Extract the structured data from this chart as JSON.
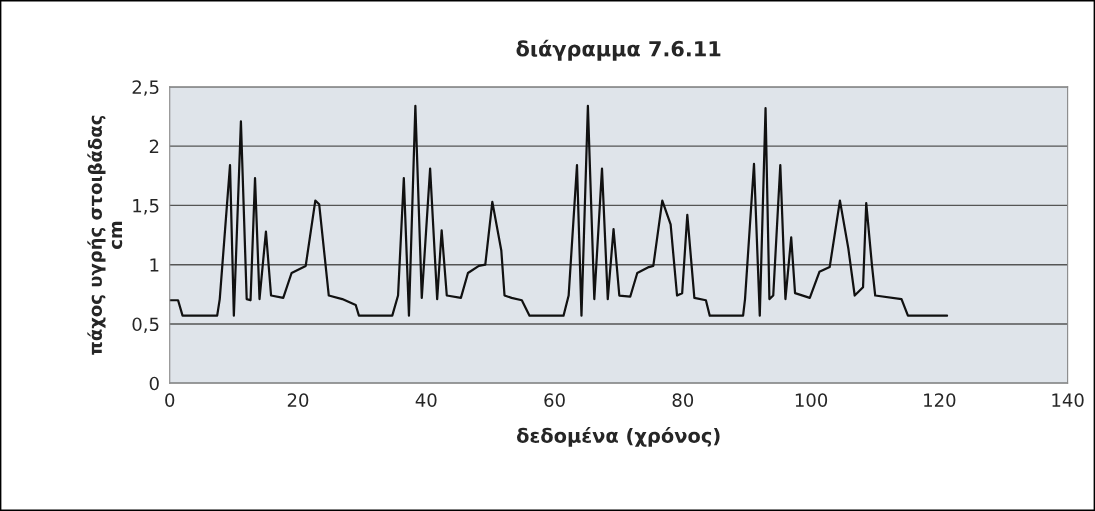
{
  "chart_data": {
    "type": "line",
    "title": "διάγραμμα 7.6.11",
    "xlabel": "δεδομένα (χρόνος)",
    "ylabel": "πάχος υγρής στοιβάδας\ncm",
    "series": [
      {
        "color": "#111111",
        "x": [
          0,
          1.3,
          2,
          7.4,
          7.8,
          9.4,
          10,
          11.1,
          12,
          12.6,
          13.3,
          14,
          15,
          15.8,
          17.7,
          19,
          21.2,
          22.7,
          23.3,
          24.8,
          26.9,
          29,
          29.5,
          34.7,
          35.6,
          36.5,
          37.3,
          38.3,
          39.3,
          40.6,
          41.7,
          42.4,
          43.2,
          45.4,
          46.5,
          48.2,
          49.2,
          50.3,
          51.7,
          52.2,
          53.3,
          54.9,
          56.1,
          61.4,
          62.2,
          63.5,
          64.2,
          65.2,
          66.2,
          67.4,
          68.3,
          69.2,
          70.1,
          71.8,
          72.9,
          74.7,
          75.4,
          76.8,
          78.1,
          79.1,
          79.9,
          80.7,
          81.8,
          83.6,
          84.2,
          89.4,
          89.7,
          91.1,
          92,
          92.9,
          93.5,
          94.1,
          95.2,
          96,
          96.9,
          97.5,
          99.8,
          101.3,
          102.9,
          104.5,
          105.8,
          106.8,
          108.1,
          108.6,
          109.5,
          110,
          114.1,
          115.1,
          121.2
        ],
        "values": [
          0.7,
          0.7,
          0.57,
          0.57,
          0.71,
          1.84,
          0.57,
          2.21,
          0.71,
          0.7,
          1.73,
          0.71,
          1.28,
          0.74,
          0.72,
          0.93,
          0.99,
          1.54,
          1.51,
          0.74,
          0.71,
          0.66,
          0.57,
          0.57,
          0.74,
          1.73,
          0.57,
          2.34,
          0.72,
          1.81,
          0.71,
          1.29,
          0.74,
          0.72,
          0.93,
          0.99,
          1.0,
          1.53,
          1.12,
          0.74,
          0.72,
          0.7,
          0.57,
          0.57,
          0.74,
          1.84,
          0.57,
          2.34,
          0.71,
          1.81,
          0.71,
          1.3,
          0.74,
          0.73,
          0.93,
          0.98,
          0.99,
          1.54,
          1.34,
          0.74,
          0.76,
          1.42,
          0.72,
          0.7,
          0.57,
          0.57,
          0.71,
          1.85,
          0.57,
          2.32,
          0.71,
          0.74,
          1.84,
          0.71,
          1.23,
          0.76,
          0.72,
          0.94,
          0.98,
          1.54,
          1.14,
          0.74,
          0.81,
          1.52,
          0.99,
          0.74,
          0.71,
          0.57,
          0.57
        ]
      }
    ],
    "xlim": [
      0,
      140
    ],
    "xticks": [
      0,
      20,
      40,
      60,
      80,
      100,
      120,
      140
    ],
    "ylim": [
      0,
      2.5
    ],
    "yticks": [
      0,
      {
        "value": 0.5,
        "label": "0,5"
      },
      1,
      {
        "value": 1.5,
        "label": "1,5"
      },
      2,
      {
        "value": 2.5,
        "label": "2,5"
      }
    ],
    "grid": "y",
    "marker": "none",
    "line_style": "solid"
  }
}
